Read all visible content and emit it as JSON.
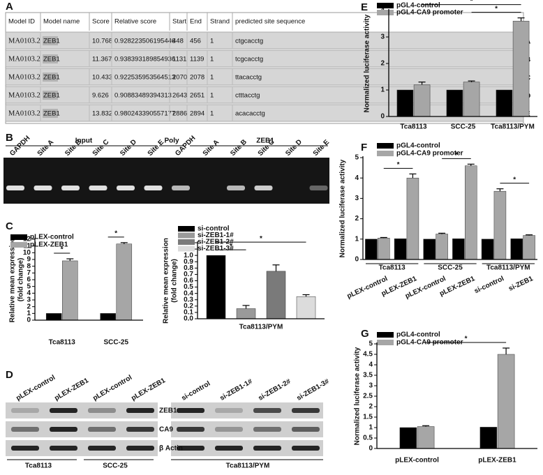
{
  "panel_labels": [
    "A",
    "B",
    "C",
    "D",
    "E",
    "F",
    "G"
  ],
  "table": {
    "header": [
      "Model ID",
      "Model name",
      "Score",
      "Relative score",
      "Start",
      "End",
      "Strand",
      "predicted site sequence"
    ],
    "rows": [
      [
        "MA0103.2",
        "ZEB1",
        "10.768",
        "0.928223506195446",
        "448",
        "456",
        "1",
        "ctgcacctg"
      ],
      [
        "MA0103.2",
        "ZEB1",
        "11.367",
        "0.938393189854936",
        "1131",
        "1139",
        "1",
        "tcgcacctg"
      ],
      [
        "MA0103.2",
        "ZEB1",
        "10.433",
        "0.922535953564513",
        "2070",
        "2078",
        "1",
        "ttacacctg"
      ],
      [
        "MA0103.2",
        "ZEB1",
        "9.626",
        "0.90883489394313",
        "2643",
        "2651",
        "1",
        "ctttacctg"
      ],
      [
        "MA0103.2",
        "ZEB1",
        "13.832",
        "0.980243390557177",
        "2886",
        "2894",
        "1",
        "acacacctg"
      ]
    ],
    "row_labels": [
      "A",
      "B",
      "C",
      "D",
      "E"
    ]
  },
  "gel_b": {
    "groups": [
      "Input",
      "Poly",
      "ZEB1"
    ],
    "lanes": [
      "GAPDH",
      "Site A",
      "Site B",
      "Site C",
      "Site D",
      "Site E",
      "GAPDH",
      "Site A",
      "Site B",
      "Site C",
      "Site D",
      "Site E"
    ]
  },
  "blot_d": {
    "lanes_left": [
      "pLEX-control",
      "pLEX-ZEB1",
      "pLEX-control",
      "pLEX-ZEB1"
    ],
    "lanes_right": [
      "si-control",
      "si-ZEB1-1#",
      "si-ZEB1-2#",
      "si-ZEB1-3#"
    ],
    "rows": [
      "ZEB1",
      "CA9",
      "β Actin"
    ],
    "groups": [
      "Tca8113",
      "SCC-25",
      "Tca8113/PYM"
    ]
  },
  "chart_data": [
    {
      "type": "bar",
      "ylabel": [
        "Relative mean expression",
        "(fold change)"
      ],
      "categories": [
        "Tca8113",
        "SCC-25"
      ],
      "series": [
        {
          "name": "pLEX-control",
          "color": "#000000",
          "values": [
            1,
            1
          ]
        },
        {
          "name": "pLEX-ZEB1",
          "color": "#a6a6a6",
          "values": [
            8.8,
            11.3
          ],
          "errors": [
            0.3,
            0.2
          ]
        }
      ],
      "ylim": [
        0,
        12
      ],
      "yticks": [
        0,
        1,
        2,
        3,
        4,
        5,
        6,
        7,
        8,
        9,
        10,
        11,
        12
      ],
      "legend": "upper left",
      "significance": [
        {
          "text": "*",
          "from": [
            0,
            0
          ],
          "to": [
            1,
            0
          ]
        },
        {
          "text": "*",
          "from": [
            0,
            1
          ],
          "to": [
            1,
            1
          ]
        }
      ]
    },
    {
      "type": "bar",
      "ylabel": [
        "Relative mean expression",
        "(fold change)"
      ],
      "categories": [
        "Tca8113/PYM"
      ],
      "series": [
        {
          "name": "si-control",
          "color": "#000000",
          "values": [
            1
          ]
        },
        {
          "name": "si-ZEB1-1#",
          "color": "#9a9a9a",
          "values": [
            0.16
          ],
          "errors": [
            0.05
          ]
        },
        {
          "name": "si-ZEB1-2#",
          "color": "#7a7a7a",
          "values": [
            0.75
          ],
          "errors": [
            0.1
          ]
        },
        {
          "name": "si-ZEB1-3#",
          "color": "#dcdcdc",
          "values": [
            0.35
          ],
          "errors": [
            0.03
          ]
        }
      ],
      "ylim": [
        0,
        1.2
      ],
      "yticks": [
        {
          "value": 0,
          "label": "0.0"
        },
        0.1,
        0.2,
        0.3,
        0.4,
        0.5,
        0.6,
        0.7,
        0.8,
        0.9,
        {
          "value": 1,
          "label": "1.0"
        },
        1.1,
        1.2
      ],
      "legend": "upper left",
      "significance": [
        {
          "text": "*",
          "from": [
            0,
            0
          ],
          "to": [
            1,
            0
          ]
        },
        {
          "text": "*",
          "from": [
            0,
            0
          ],
          "to": [
            3,
            0
          ]
        }
      ]
    },
    {
      "type": "bar",
      "ylabel": [
        "Normalized luciferase activity"
      ],
      "categories": [
        "Tca8113",
        "SCC-25",
        "Tca8113/PYM"
      ],
      "series": [
        {
          "name": "pGL4-control",
          "color": "#000000",
          "values": [
            1,
            1,
            1
          ]
        },
        {
          "name": "pGL4-CA9 promoter",
          "color": "#a6a6a6",
          "values": [
            1.2,
            1.3,
            3.6
          ],
          "errors": [
            0.1,
            0.04,
            0.12
          ]
        }
      ],
      "ylim": [
        0,
        4
      ],
      "yticks": [
        0,
        1,
        2,
        3,
        4
      ],
      "legend": "upper left",
      "significance": [
        {
          "text": "*",
          "from": [
            1,
            0
          ],
          "to": [
            1,
            2
          ]
        },
        {
          "text": "*",
          "from": [
            1,
            1
          ],
          "to": [
            1,
            2
          ]
        }
      ]
    },
    {
      "type": "bar",
      "ylabel": [
        "Normalized luciferase activity"
      ],
      "categories": [
        "pLEX-control",
        "pLEX-ZEB1",
        "pLEX-control",
        "pLEX-ZEB1",
        "si-control",
        "si-ZEB1"
      ],
      "groups": [
        {
          "label": "Tca8113",
          "categories": [
            0,
            1
          ]
        },
        {
          "label": "SCC-25",
          "categories": [
            2,
            3
          ]
        },
        {
          "label": "Tca8113/PYM",
          "categories": [
            4,
            5
          ]
        }
      ],
      "series": [
        {
          "name": "pGL4-control",
          "color": "#000000",
          "values": [
            1,
            1.02,
            1,
            1.02,
            1,
            1.02
          ]
        },
        {
          "name": "pGL4-CA9 promoter",
          "color": "#a6a6a6",
          "values": [
            1.05,
            4.0,
            1.25,
            4.6,
            3.35,
            1.18
          ],
          "errors": [
            0.03,
            0.2,
            0.04,
            0.08,
            0.12,
            0.03
          ]
        }
      ],
      "ylim": [
        0,
        5
      ],
      "yticks": [
        0,
        1,
        2,
        3,
        4,
        5
      ],
      "legend": "upper left",
      "significance": [
        {
          "text": "*",
          "from": [
            1,
            0
          ],
          "to": [
            1,
            1
          ]
        },
        {
          "text": "*",
          "from": [
            1,
            2
          ],
          "to": [
            1,
            3
          ]
        },
        {
          "text": "*",
          "from": [
            1,
            4
          ],
          "to": [
            1,
            5
          ]
        }
      ]
    },
    {
      "type": "bar",
      "ylabel": [
        "Normalized luciferase activity"
      ],
      "categories": [
        "pLEX-control",
        "pLEX-ZEB1"
      ],
      "series": [
        {
          "name": "pGL4-control",
          "color": "#000000",
          "values": [
            1,
            1.02
          ]
        },
        {
          "name": "pGL4-CA9 promoter",
          "color": "#a6a6a6",
          "values": [
            1.05,
            4.5
          ],
          "errors": [
            0.04,
            0.3
          ]
        }
      ],
      "ylim": [
        0,
        5
      ],
      "yticks": [
        0,
        0.5,
        1,
        1.5,
        2,
        2.5,
        3,
        3.5,
        4,
        4.5,
        5
      ],
      "legend": "upper left",
      "significance": [
        {
          "text": "*",
          "from": [
            1,
            0
          ],
          "to": [
            1,
            1
          ]
        }
      ]
    }
  ]
}
